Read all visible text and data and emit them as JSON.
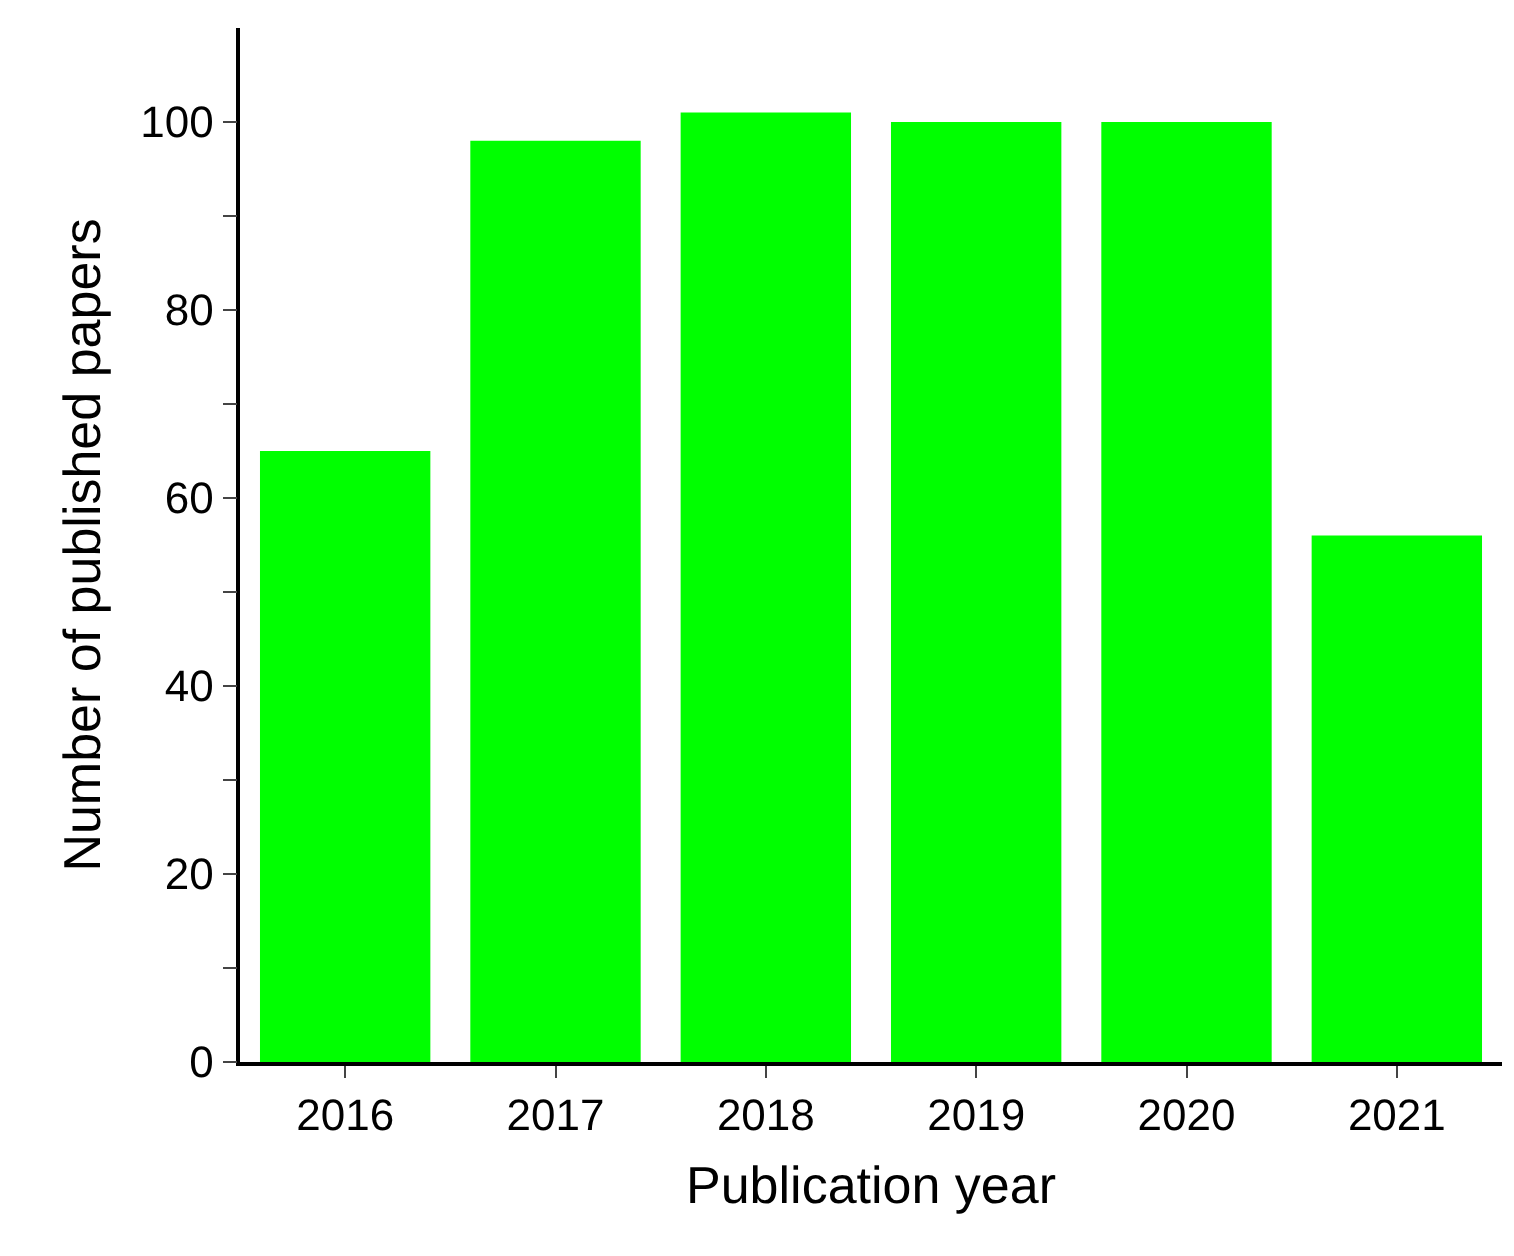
{
  "chart_data": {
    "type": "bar",
    "xlabel": "Publication year",
    "ylabel": "Number of published papers",
    "categories": [
      "2016",
      "2017",
      "2018",
      "2019",
      "2020",
      "2021"
    ],
    "values": [
      65,
      98,
      101,
      100,
      100,
      56
    ],
    "color": "#00ff00",
    "ylim": [
      0,
      110
    ],
    "yticks": [
      0,
      {
        "value": 10,
        "label": null
      },
      20,
      {
        "value": 30,
        "label": null
      },
      40,
      {
        "value": 50,
        "label": null
      },
      60,
      {
        "value": 70,
        "label": null
      },
      80,
      {
        "value": 90,
        "label": null
      },
      100
    ],
    "grid": false
  }
}
